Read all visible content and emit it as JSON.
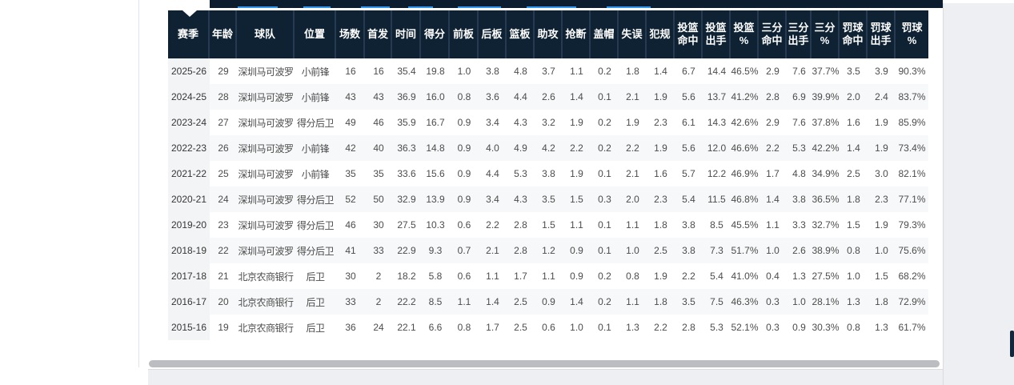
{
  "page": {
    "background_color": "#ffffff",
    "surround_color": "#edeff3"
  },
  "navbar": {
    "background_color": "#0b1d2e",
    "accent_color": "#2f99f1"
  },
  "table": {
    "header_bg": "#0e2233",
    "header_text_color": "#ffffff",
    "alt_row_bg": "#f7f8f9",
    "season_col_bg": "#f3f4f5",
    "columns": [
      "赛季",
      "年龄",
      "球队",
      "位置",
      "场数",
      "首发",
      "时间",
      "得分",
      "前板",
      "后板",
      "篮板",
      "助攻",
      "抢断",
      "盖帽",
      "失误",
      "犯规",
      "投篮\n命中",
      "投篮\n出手",
      "投篮\n%",
      "三分\n命中",
      "三分\n出手",
      "三分\n%",
      "罚球\n命中",
      "罚球\n出手",
      "罚球\n%"
    ],
    "rows": [
      [
        "2025-26",
        "29",
        "深圳马可波罗",
        "小前锋",
        "16",
        "16",
        "35.4",
        "19.8",
        "1.0",
        "3.8",
        "4.8",
        "3.7",
        "1.1",
        "0.2",
        "1.8",
        "1.4",
        "6.7",
        "14.4",
        "46.5%",
        "2.9",
        "7.6",
        "37.7%",
        "3.5",
        "3.9",
        "90.3%"
      ],
      [
        "2024-25",
        "28",
        "深圳马可波罗",
        "小前锋",
        "43",
        "43",
        "36.9",
        "16.0",
        "0.8",
        "3.6",
        "4.4",
        "2.6",
        "1.4",
        "0.1",
        "2.1",
        "1.9",
        "5.6",
        "13.7",
        "41.2%",
        "2.8",
        "6.9",
        "39.9%",
        "2.0",
        "2.4",
        "83.7%"
      ],
      [
        "2023-24",
        "27",
        "深圳马可波罗",
        "得分后卫",
        "49",
        "46",
        "35.9",
        "16.7",
        "0.9",
        "3.4",
        "4.3",
        "3.2",
        "1.9",
        "0.2",
        "1.9",
        "2.3",
        "6.1",
        "14.3",
        "42.6%",
        "2.9",
        "7.6",
        "37.8%",
        "1.6",
        "1.9",
        "85.9%"
      ],
      [
        "2022-23",
        "26",
        "深圳马可波罗",
        "小前锋",
        "42",
        "40",
        "36.3",
        "14.8",
        "0.9",
        "4.0",
        "4.9",
        "4.2",
        "2.2",
        "0.2",
        "2.2",
        "1.9",
        "5.6",
        "12.0",
        "46.6%",
        "2.2",
        "5.3",
        "42.2%",
        "1.4",
        "1.9",
        "73.4%"
      ],
      [
        "2021-22",
        "25",
        "深圳马可波罗",
        "小前锋",
        "35",
        "35",
        "33.6",
        "15.6",
        "0.9",
        "4.4",
        "5.3",
        "3.8",
        "1.9",
        "0.1",
        "2.1",
        "1.6",
        "5.7",
        "12.2",
        "46.9%",
        "1.7",
        "4.8",
        "34.9%",
        "2.5",
        "3.0",
        "82.1%"
      ],
      [
        "2020-21",
        "24",
        "深圳马可波罗",
        "得分后卫",
        "52",
        "50",
        "32.9",
        "13.9",
        "0.9",
        "3.4",
        "4.3",
        "3.5",
        "1.5",
        "0.3",
        "2.0",
        "2.3",
        "5.4",
        "11.5",
        "46.8%",
        "1.4",
        "3.8",
        "36.5%",
        "1.8",
        "2.3",
        "77.1%"
      ],
      [
        "2019-20",
        "23",
        "深圳马可波罗",
        "得分后卫",
        "46",
        "30",
        "27.5",
        "10.3",
        "0.6",
        "2.2",
        "2.8",
        "1.5",
        "1.1",
        "0.1",
        "1.1",
        "1.8",
        "3.8",
        "8.5",
        "45.5%",
        "1.1",
        "3.3",
        "32.7%",
        "1.5",
        "1.9",
        "79.3%"
      ],
      [
        "2018-19",
        "22",
        "深圳马可波罗",
        "得分后卫",
        "41",
        "33",
        "22.9",
        "9.3",
        "0.7",
        "2.1",
        "2.8",
        "1.2",
        "0.9",
        "0.1",
        "1.0",
        "2.5",
        "3.8",
        "7.3",
        "51.7%",
        "1.0",
        "2.6",
        "38.9%",
        "0.8",
        "1.0",
        "75.6%"
      ],
      [
        "2017-18",
        "21",
        "北京农商银行",
        "后卫",
        "30",
        "2",
        "18.2",
        "5.8",
        "0.6",
        "1.1",
        "1.7",
        "1.1",
        "0.9",
        "0.2",
        "0.8",
        "1.9",
        "2.2",
        "5.4",
        "41.0%",
        "0.4",
        "1.3",
        "27.5%",
        "1.0",
        "1.5",
        "68.2%"
      ],
      [
        "2016-17",
        "20",
        "北京农商银行",
        "后卫",
        "33",
        "2",
        "22.2",
        "8.5",
        "1.1",
        "1.4",
        "2.5",
        "0.9",
        "1.4",
        "0.2",
        "1.1",
        "1.8",
        "3.5",
        "7.5",
        "46.3%",
        "0.3",
        "1.0",
        "28.1%",
        "1.3",
        "1.8",
        "72.9%"
      ],
      [
        "2015-16",
        "19",
        "北京农商银行",
        "后卫",
        "36",
        "24",
        "22.1",
        "6.6",
        "0.8",
        "1.7",
        "2.5",
        "0.6",
        "1.0",
        "0.1",
        "1.3",
        "2.2",
        "2.8",
        "5.3",
        "52.1%",
        "0.3",
        "0.9",
        "30.3%",
        "0.8",
        "1.3",
        "61.7%"
      ]
    ]
  },
  "scrollbar": {
    "horizontal_color": "#bbbdc0",
    "vertical_color": "#13273c"
  }
}
